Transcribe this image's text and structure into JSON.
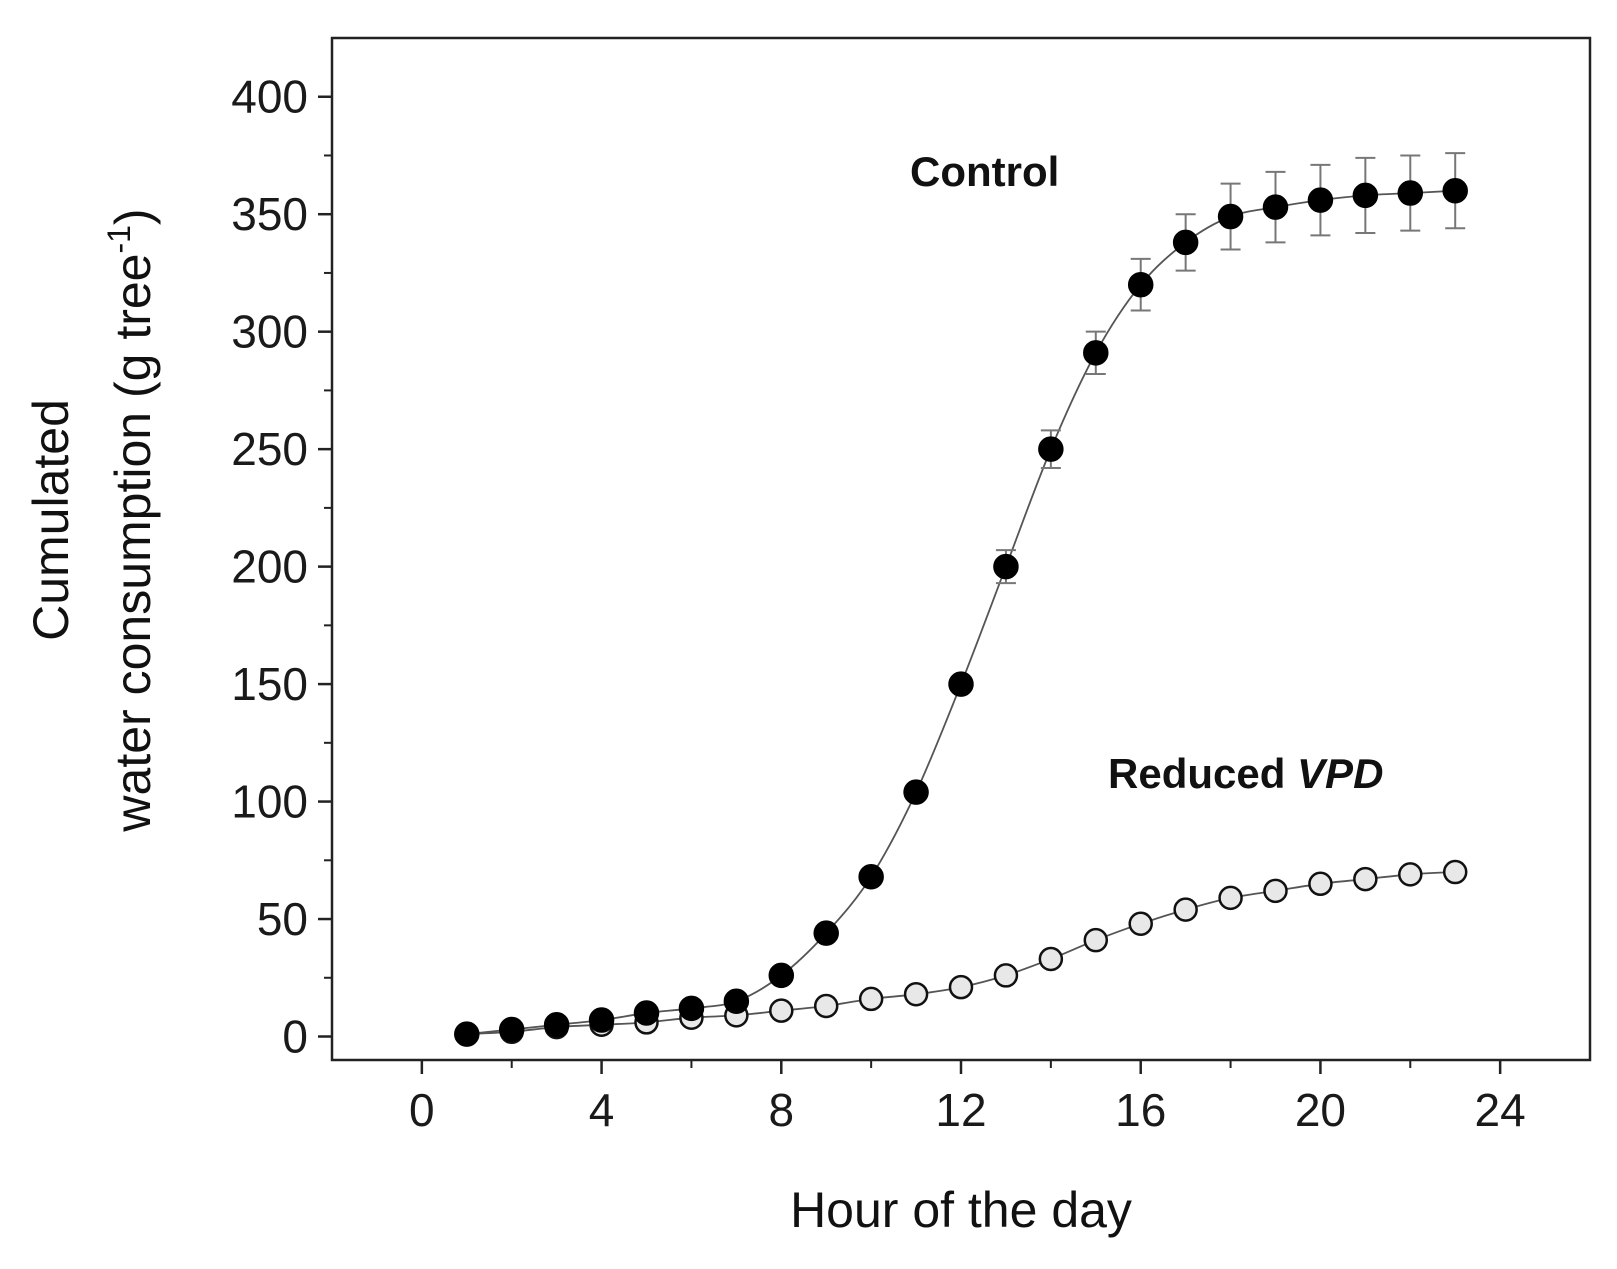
{
  "chart_data": {
    "type": "scatter",
    "title": "",
    "xlabel": "Hour of the day",
    "ylabel": {
      "line1": "Cumulated",
      "line2_prefix": "water consumption (g tree",
      "line2_sup": "-1",
      "line2_suffix": ")"
    },
    "xlim": [
      -2,
      26
    ],
    "ylim": [
      -10,
      425
    ],
    "xticks": [
      0,
      4,
      8,
      12,
      16,
      20,
      24
    ],
    "yticks": [
      0,
      50,
      100,
      150,
      200,
      250,
      300,
      350,
      400
    ],
    "xtick_labels": [
      "0",
      "4",
      "8",
      "12",
      "16",
      "20",
      "24"
    ],
    "ytick_labels": [
      "0",
      "50",
      "100",
      "150",
      "200",
      "250",
      "300",
      "350",
      "400"
    ],
    "annotations": {
      "control": "Control",
      "reduced_prefix": "Reduced ",
      "reduced_italic": "VPD"
    },
    "series": [
      {
        "name": "Control",
        "marker": "filled-circle",
        "color": "#000000",
        "x": [
          1,
          2,
          3,
          4,
          5,
          6,
          7,
          8,
          9,
          10,
          11,
          12,
          13,
          14,
          15,
          16,
          17,
          18,
          19,
          20,
          21,
          22,
          23
        ],
        "y": [
          1,
          3,
          5,
          7,
          10,
          12,
          15,
          26,
          44,
          68,
          104,
          150,
          200,
          250,
          291,
          320,
          338,
          349,
          353,
          356,
          358,
          359,
          360
        ],
        "err": [
          0,
          0,
          0,
          0,
          0,
          0,
          0,
          0,
          0,
          0,
          0,
          2,
          7,
          8,
          9,
          11,
          12,
          14,
          15,
          15,
          16,
          16,
          16
        ]
      },
      {
        "name": "Reduced VPD",
        "marker": "open-circle",
        "color": "#000000",
        "x": [
          1,
          2,
          3,
          4,
          5,
          6,
          7,
          8,
          9,
          10,
          11,
          12,
          13,
          14,
          15,
          16,
          17,
          18,
          19,
          20,
          21,
          22,
          23
        ],
        "y": [
          1,
          2,
          4,
          5,
          6,
          8,
          9,
          11,
          13,
          16,
          18,
          21,
          26,
          33,
          41,
          48,
          54,
          59,
          62,
          65,
          67,
          69,
          70
        ],
        "err": [
          0,
          0,
          0,
          0,
          0,
          0,
          0,
          0,
          0,
          0,
          0,
          0,
          0,
          0,
          0,
          0,
          0,
          0,
          0,
          0,
          0,
          0,
          0
        ]
      }
    ]
  }
}
